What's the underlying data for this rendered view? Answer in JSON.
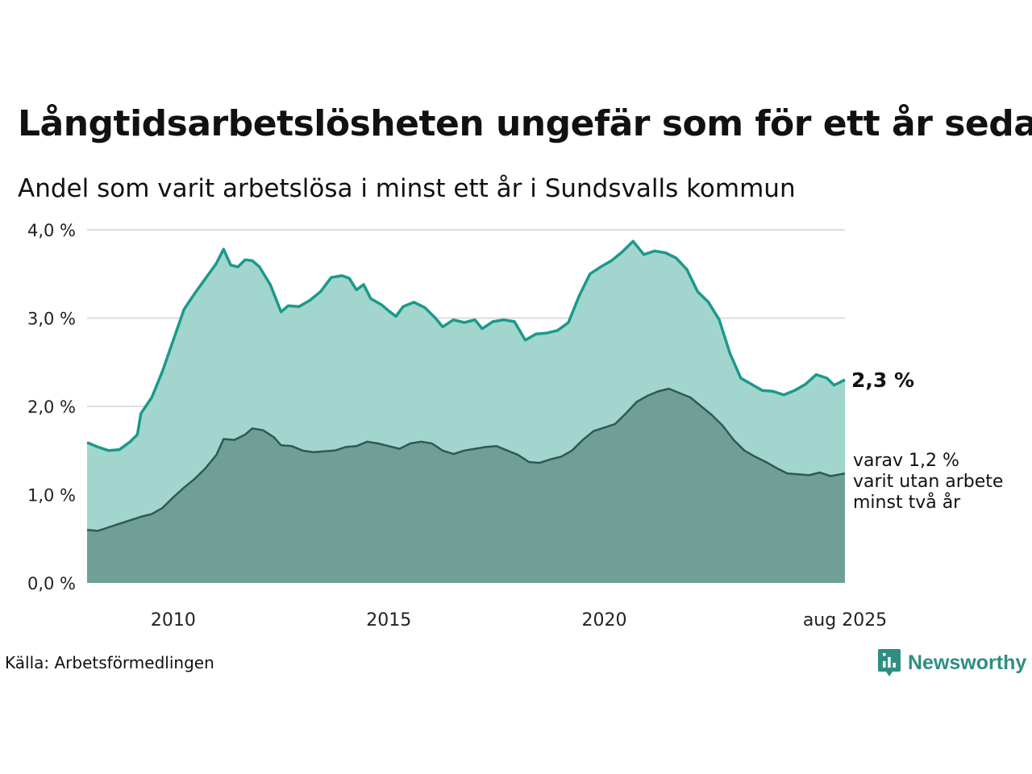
{
  "header": {
    "title": "Långtidsarbetslösheten ungefär som för ett år sedan",
    "subtitle": "Andel som varit arbetslösa i minst ett år i Sundsvalls kommun"
  },
  "footer": {
    "source": "Källa: Arbetsförmedlingen",
    "brand": "Newsworthy",
    "brand_icon": "bar-chart-speech-bubble-icon"
  },
  "colors": {
    "series1_line": "#1a9a8a",
    "series1_fill": "#a3d5cf",
    "series2_line": "#2f5a52",
    "series2_fill": "#6f9f97",
    "grid": "#dddddd",
    "brand": "#2e8f80"
  },
  "chart_data": {
    "type": "area",
    "title": "Långtidsarbetslösheten ungefär som för ett år sedan",
    "subtitle": "Andel som varit arbetslösa i minst ett år i Sundsvalls kommun",
    "x_range": [
      "2008-01",
      "2025-08"
    ],
    "x_ticks": [
      {
        "date": "2010-01",
        "label": "2010"
      },
      {
        "date": "2015-01",
        "label": "2015"
      },
      {
        "date": "2020-01",
        "label": "2020"
      },
      {
        "date": "2025-08",
        "label": "aug 2025"
      }
    ],
    "ylim": [
      0,
      4.0
    ],
    "y_ticks": [
      {
        "value": 0,
        "label": "0,0 %"
      },
      {
        "value": 1,
        "label": "1,0 %"
      },
      {
        "value": 2,
        "label": "2,0 %"
      },
      {
        "value": 3,
        "label": "3,0 %"
      },
      {
        "value": 4,
        "label": "4,0 %"
      }
    ],
    "grid": true,
    "series": [
      {
        "label": "minst ett år",
        "end_label": "2,3 %",
        "points": [
          [
            "2008-01",
            1.59
          ],
          [
            "2008-04",
            1.54
          ],
          [
            "2008-07",
            1.5
          ],
          [
            "2008-10",
            1.51
          ],
          [
            "2009-01",
            1.6
          ],
          [
            "2009-03",
            1.68
          ],
          [
            "2009-04",
            1.92
          ],
          [
            "2009-07",
            2.1
          ],
          [
            "2009-10",
            2.4
          ],
          [
            "2010-01",
            2.75
          ],
          [
            "2010-04",
            3.1
          ],
          [
            "2010-07",
            3.28
          ],
          [
            "2010-10",
            3.45
          ],
          [
            "2011-01",
            3.62
          ],
          [
            "2011-03",
            3.78
          ],
          [
            "2011-05",
            3.6
          ],
          [
            "2011-07",
            3.58
          ],
          [
            "2011-09",
            3.66
          ],
          [
            "2011-11",
            3.65
          ],
          [
            "2012-01",
            3.58
          ],
          [
            "2012-04",
            3.38
          ],
          [
            "2012-07",
            3.07
          ],
          [
            "2012-09",
            3.14
          ],
          [
            "2012-12",
            3.13
          ],
          [
            "2013-03",
            3.2
          ],
          [
            "2013-06",
            3.3
          ],
          [
            "2013-09",
            3.46
          ],
          [
            "2013-12",
            3.48
          ],
          [
            "2014-02",
            3.45
          ],
          [
            "2014-04",
            3.32
          ],
          [
            "2014-06",
            3.38
          ],
          [
            "2014-08",
            3.22
          ],
          [
            "2014-11",
            3.15
          ],
          [
            "2015-01",
            3.08
          ],
          [
            "2015-03",
            3.02
          ],
          [
            "2015-05",
            3.13
          ],
          [
            "2015-08",
            3.18
          ],
          [
            "2015-11",
            3.12
          ],
          [
            "2016-02",
            3.0
          ],
          [
            "2016-04",
            2.9
          ],
          [
            "2016-07",
            2.98
          ],
          [
            "2016-10",
            2.95
          ],
          [
            "2017-01",
            2.98
          ],
          [
            "2017-03",
            2.88
          ],
          [
            "2017-06",
            2.96
          ],
          [
            "2017-09",
            2.98
          ],
          [
            "2017-12",
            2.96
          ],
          [
            "2018-03",
            2.75
          ],
          [
            "2018-06",
            2.82
          ],
          [
            "2018-09",
            2.83
          ],
          [
            "2018-12",
            2.86
          ],
          [
            "2019-03",
            2.95
          ],
          [
            "2019-06",
            3.25
          ],
          [
            "2019-09",
            3.5
          ],
          [
            "2019-12",
            3.58
          ],
          [
            "2020-03",
            3.65
          ],
          [
            "2020-06",
            3.75
          ],
          [
            "2020-09",
            3.87
          ],
          [
            "2020-12",
            3.72
          ],
          [
            "2021-03",
            3.76
          ],
          [
            "2021-06",
            3.74
          ],
          [
            "2021-09",
            3.68
          ],
          [
            "2021-12",
            3.55
          ],
          [
            "2022-03",
            3.3
          ],
          [
            "2022-06",
            3.18
          ],
          [
            "2022-09",
            2.98
          ],
          [
            "2022-12",
            2.6
          ],
          [
            "2023-03",
            2.32
          ],
          [
            "2023-06",
            2.25
          ],
          [
            "2023-09",
            2.18
          ],
          [
            "2023-12",
            2.17
          ],
          [
            "2024-03",
            2.13
          ],
          [
            "2024-06",
            2.18
          ],
          [
            "2024-09",
            2.25
          ],
          [
            "2024-12",
            2.36
          ],
          [
            "2025-03",
            2.32
          ],
          [
            "2025-05",
            2.24
          ],
          [
            "2025-08",
            2.3
          ]
        ]
      },
      {
        "label": "minst två år",
        "end_label_lines": [
          "varav 1,2 %",
          "varit utan arbete",
          "minst två år"
        ],
        "points": [
          [
            "2008-01",
            0.6
          ],
          [
            "2008-04",
            0.59
          ],
          [
            "2008-07",
            0.63
          ],
          [
            "2008-10",
            0.67
          ],
          [
            "2009-01",
            0.71
          ],
          [
            "2009-04",
            0.75
          ],
          [
            "2009-07",
            0.78
          ],
          [
            "2009-10",
            0.85
          ],
          [
            "2010-01",
            0.97
          ],
          [
            "2010-04",
            1.08
          ],
          [
            "2010-07",
            1.18
          ],
          [
            "2010-10",
            1.3
          ],
          [
            "2011-01",
            1.45
          ],
          [
            "2011-03",
            1.63
          ],
          [
            "2011-06",
            1.62
          ],
          [
            "2011-09",
            1.68
          ],
          [
            "2011-11",
            1.75
          ],
          [
            "2012-02",
            1.73
          ],
          [
            "2012-05",
            1.65
          ],
          [
            "2012-07",
            1.56
          ],
          [
            "2012-10",
            1.55
          ],
          [
            "2013-01",
            1.5
          ],
          [
            "2013-04",
            1.48
          ],
          [
            "2013-07",
            1.49
          ],
          [
            "2013-10",
            1.5
          ],
          [
            "2014-01",
            1.54
          ],
          [
            "2014-04",
            1.55
          ],
          [
            "2014-07",
            1.6
          ],
          [
            "2014-10",
            1.58
          ],
          [
            "2015-01",
            1.55
          ],
          [
            "2015-04",
            1.52
          ],
          [
            "2015-07",
            1.58
          ],
          [
            "2015-10",
            1.6
          ],
          [
            "2016-01",
            1.58
          ],
          [
            "2016-04",
            1.5
          ],
          [
            "2016-07",
            1.46
          ],
          [
            "2016-10",
            1.5
          ],
          [
            "2017-01",
            1.52
          ],
          [
            "2017-04",
            1.54
          ],
          [
            "2017-07",
            1.55
          ],
          [
            "2017-10",
            1.5
          ],
          [
            "2018-01",
            1.45
          ],
          [
            "2018-04",
            1.37
          ],
          [
            "2018-07",
            1.36
          ],
          [
            "2018-10",
            1.4
          ],
          [
            "2019-01",
            1.43
          ],
          [
            "2019-04",
            1.5
          ],
          [
            "2019-07",
            1.62
          ],
          [
            "2019-10",
            1.72
          ],
          [
            "2020-01",
            1.76
          ],
          [
            "2020-04",
            1.8
          ],
          [
            "2020-07",
            1.92
          ],
          [
            "2020-10",
            2.05
          ],
          [
            "2021-01",
            2.12
          ],
          [
            "2021-04",
            2.17
          ],
          [
            "2021-07",
            2.2
          ],
          [
            "2021-10",
            2.15
          ],
          [
            "2022-01",
            2.1
          ],
          [
            "2022-04",
            2.0
          ],
          [
            "2022-07",
            1.9
          ],
          [
            "2022-10",
            1.78
          ],
          [
            "2023-01",
            1.62
          ],
          [
            "2023-04",
            1.5
          ],
          [
            "2023-07",
            1.43
          ],
          [
            "2023-10",
            1.37
          ],
          [
            "2024-01",
            1.3
          ],
          [
            "2024-04",
            1.24
          ],
          [
            "2024-07",
            1.23
          ],
          [
            "2024-10",
            1.22
          ],
          [
            "2025-01",
            1.25
          ],
          [
            "2025-04",
            1.21
          ],
          [
            "2025-08",
            1.24
          ]
        ]
      }
    ]
  }
}
